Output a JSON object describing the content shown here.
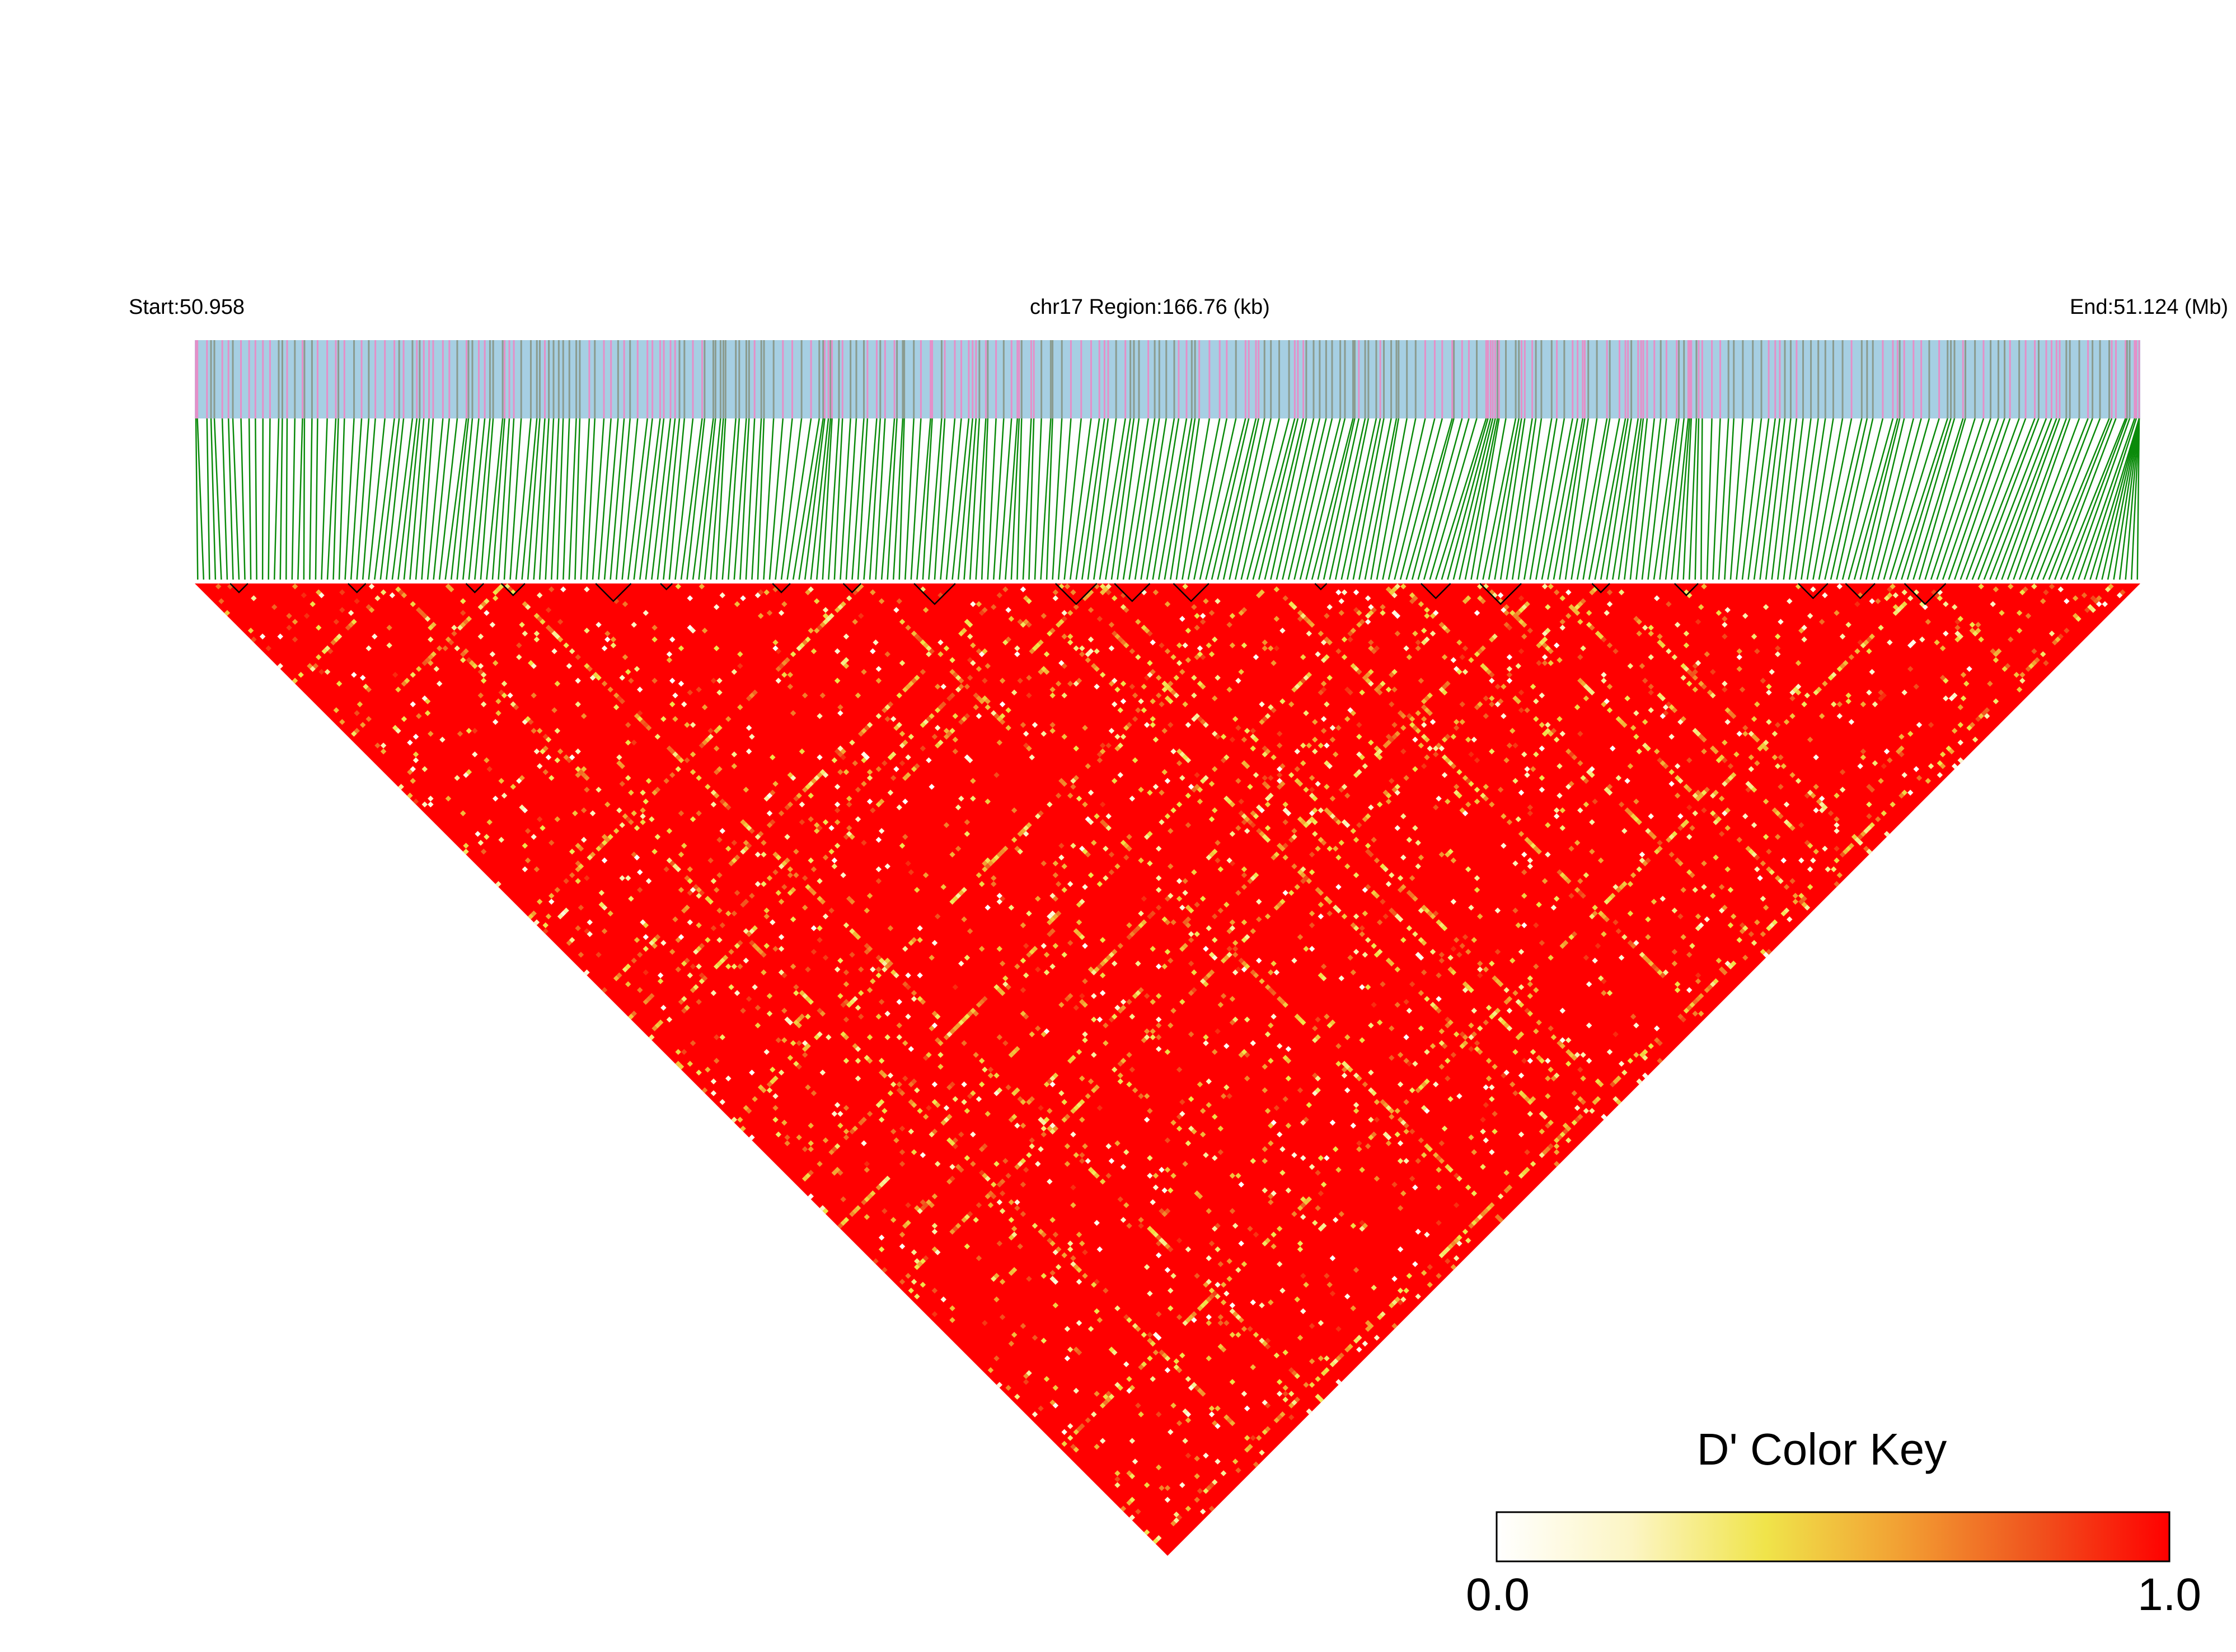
{
  "chart_data": {
    "type": "heatmap",
    "subtype": "linkage-disequilibrium-triangle",
    "metric": "D'",
    "chromosome": "chr17",
    "header": {
      "start_label": "Start:50.958",
      "region_label": "chr17 Region:166.76 (kb)",
      "end_label": "End:51.124 (Mb)"
    },
    "region_start_mb": 50.958,
    "region_end_mb": 51.124,
    "region_length_kb": 166.76,
    "snp_count": 330,
    "value_range": [
      0.0,
      1.0
    ],
    "dominant_value": 1.0,
    "haplotype_block_count": 20,
    "color_key": {
      "title": "D' Color Key",
      "min_label": "0.0",
      "max_label": "1.0",
      "stops": [
        "#ffffff",
        "#fcf5c4",
        "#f0e44a",
        "#f2a033",
        "#f0541e",
        "#ff0000"
      ]
    },
    "colors": {
      "track_background": "#a6cfe3",
      "snp_tick_gray": "#8a9b8f",
      "snp_tick_pink": "#e58fc8",
      "connector_lines": "#0a8a0a",
      "block_outline": "#000000",
      "high_ld": "#ff0000"
    }
  }
}
